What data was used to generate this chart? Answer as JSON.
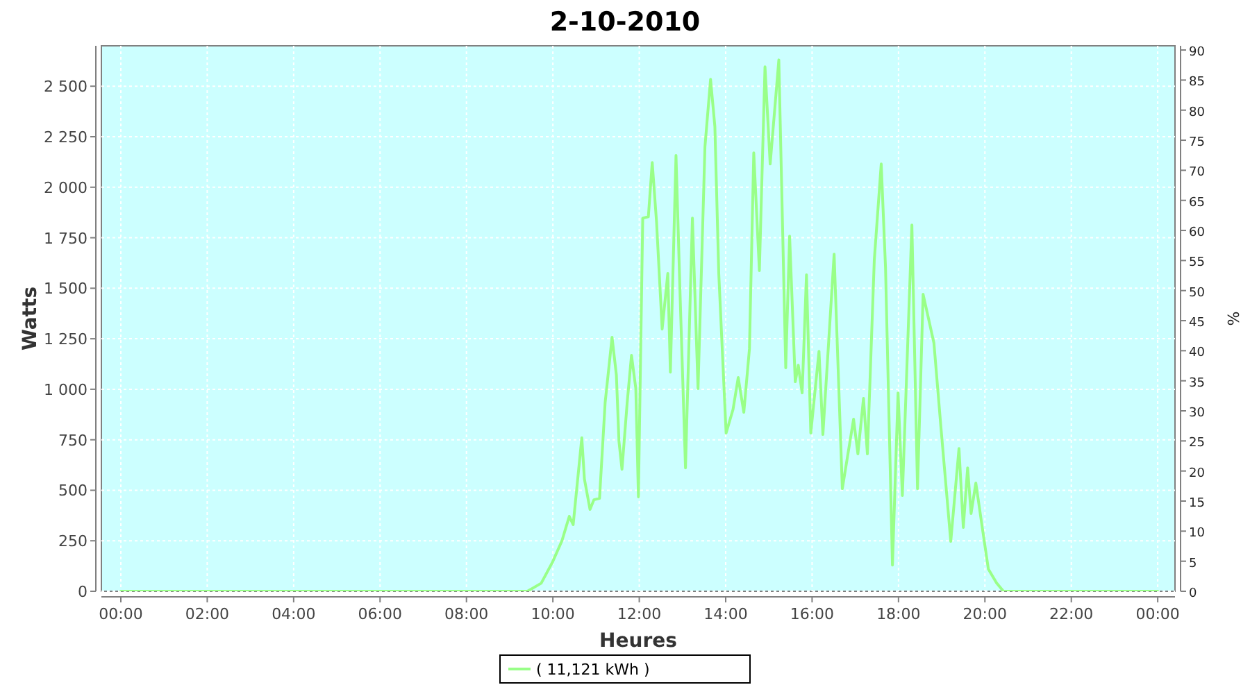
{
  "chart_data": {
    "type": "line",
    "title": "2-10-2010",
    "xlabel": "Heures",
    "ylabel": "Watts",
    "y2label": "%",
    "xlim": [
      -0.45,
      24.4
    ],
    "ylim": [
      0,
      2700
    ],
    "y2lim": [
      0,
      90.7
    ],
    "xticks": [
      {
        "value": 0,
        "label": "00:00"
      },
      {
        "value": 2,
        "label": "02:00"
      },
      {
        "value": 4,
        "label": "04:00"
      },
      {
        "value": 6,
        "label": "06:00"
      },
      {
        "value": 8,
        "label": "08:00"
      },
      {
        "value": 10,
        "label": "10:00"
      },
      {
        "value": 12,
        "label": "12:00"
      },
      {
        "value": 14,
        "label": "14:00"
      },
      {
        "value": 16,
        "label": "16:00"
      },
      {
        "value": 18,
        "label": "18:00"
      },
      {
        "value": 20,
        "label": "20:00"
      },
      {
        "value": 22,
        "label": "22:00"
      },
      {
        "value": 24,
        "label": "00:00"
      }
    ],
    "yticks": [
      {
        "value": 0,
        "label": "0"
      },
      {
        "value": 250,
        "label": "250"
      },
      {
        "value": 500,
        "label": "500"
      },
      {
        "value": 750,
        "label": "750"
      },
      {
        "value": 1000,
        "label": "1 000"
      },
      {
        "value": 1250,
        "label": "1 250"
      },
      {
        "value": 1500,
        "label": "1 500"
      },
      {
        "value": 1750,
        "label": "1 750"
      },
      {
        "value": 2000,
        "label": "2 000"
      },
      {
        "value": 2250,
        "label": "2 250"
      },
      {
        "value": 2500,
        "label": "2 500"
      }
    ],
    "y2ticks": [
      0,
      5,
      10,
      15,
      20,
      25,
      30,
      35,
      40,
      45,
      50,
      55,
      60,
      65,
      70,
      75,
      80,
      85,
      90
    ],
    "grid": true,
    "legend": "bottom",
    "marker": "none",
    "line_style": "solid",
    "series": [
      {
        "name": "( 11,121 kWh )",
        "color": "#99ff88",
        "x": [
          0,
          9.41,
          9.73,
          9.99,
          10.21,
          10.38,
          10.47,
          10.67,
          10.73,
          10.86,
          10.95,
          11.08,
          11.21,
          11.37,
          11.47,
          11.53,
          11.6,
          11.72,
          11.82,
          11.92,
          11.98,
          12.08,
          12.21,
          12.3,
          12.4,
          12.53,
          12.66,
          12.72,
          12.85,
          12.94,
          13.07,
          13.23,
          13.36,
          13.52,
          13.65,
          13.75,
          13.84,
          14.01,
          14.17,
          14.29,
          14.42,
          14.55,
          14.65,
          14.78,
          14.91,
          15.03,
          15.23,
          15.39,
          15.48,
          15.61,
          15.68,
          15.77,
          15.87,
          15.97,
          16.16,
          16.25,
          16.51,
          16.7,
          16.96,
          17.06,
          17.19,
          17.28,
          17.44,
          17.6,
          17.7,
          17.86,
          17.99,
          18.09,
          18.31,
          18.44,
          18.57,
          18.82,
          18.98,
          19.21,
          19.4,
          19.5,
          19.6,
          19.68,
          19.79,
          19.95,
          20.08,
          20.27,
          20.43,
          24
        ],
        "values": [
          0,
          0,
          40,
          144,
          250,
          371,
          330,
          760,
          556,
          405,
          453,
          460,
          934,
          1257,
          1071,
          742,
          604,
          934,
          1168,
          1003,
          467,
          1847,
          1854,
          2122,
          1827,
          1298,
          1573,
          1085,
          2157,
          1500,
          611,
          1847,
          1003,
          2200,
          2534,
          2300,
          1573,
          783,
          900,
          1058,
          886,
          1200,
          2170,
          1587,
          2596,
          2115,
          2630,
          1106,
          1758,
          1037,
          1119,
          982,
          1566,
          783,
          1188,
          776,
          1669,
          508,
          852,
          680,
          955,
          680,
          1641,
          2115,
          1600,
          130,
          982,
          474,
          1813,
          508,
          1470,
          1229,
          817,
          247,
          707,
          316,
          611,
          385,
          536,
          300,
          110,
          41,
          0,
          0
        ]
      }
    ]
  }
}
